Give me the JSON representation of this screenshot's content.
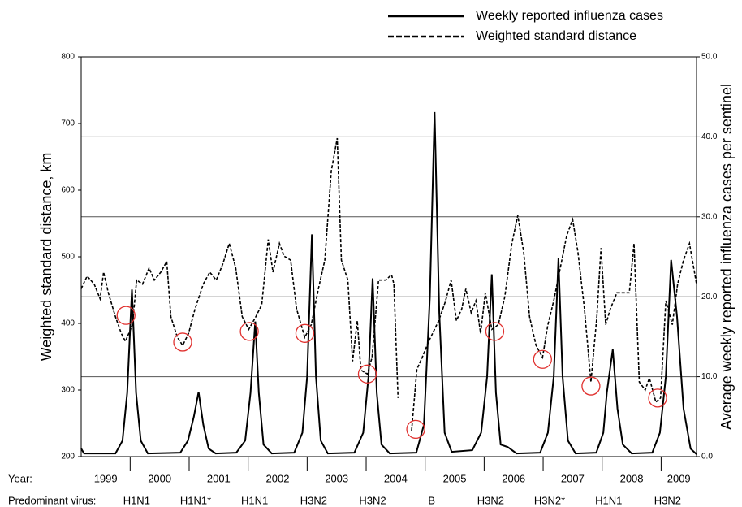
{
  "chart_data": {
    "type": "line",
    "y_label": "Weighted standard distance, km",
    "y2_label": "Average weekly reported influenza cases per sentinel",
    "xlim": [
      1999.17,
      2009.6
    ],
    "xticks": [
      2000,
      2001,
      2002,
      2003,
      2004,
      2005,
      2006,
      2007,
      2008,
      2009
    ],
    "ylim": [
      200,
      800
    ],
    "yticks": [
      200,
      300,
      400,
      500,
      600,
      700,
      800
    ],
    "y2lim": [
      0,
      50
    ],
    "y2ticks": [
      {
        "value": 0,
        "label": "0.0"
      },
      {
        "value": 10,
        "label": "10.0"
      },
      {
        "value": 20,
        "label": "20.0"
      },
      {
        "value": 30,
        "label": "30.0"
      },
      {
        "value": 40,
        "label": "40.0"
      },
      {
        "value": 50,
        "label": "50.0"
      }
    ],
    "grid": true,
    "series": [
      {
        "name": "Weekly reported influenza cases",
        "color": "#000000",
        "dash": "solid",
        "axis": "y2",
        "x": [
          1999.17,
          1999.22,
          1999.75,
          1999.87,
          1999.95,
          2000.03,
          2000.1,
          2000.18,
          2000.3,
          2000.85,
          2000.98,
          2001.08,
          2001.16,
          2001.24,
          2001.33,
          2001.45,
          2001.8,
          2001.95,
          2002.04,
          2002.12,
          2002.18,
          2002.26,
          2002.4,
          2002.78,
          2002.92,
          2003.0,
          2003.08,
          2003.15,
          2003.23,
          2003.35,
          2003.8,
          2003.95,
          2004.04,
          2004.11,
          2004.18,
          2004.26,
          2004.4,
          2004.85,
          2004.98,
          2005.08,
          2005.16,
          2005.24,
          2005.33,
          2005.45,
          2005.8,
          2005.95,
          2006.05,
          2006.13,
          2006.2,
          2006.28,
          2006.4,
          2006.55,
          2006.95,
          2007.08,
          2007.18,
          2007.26,
          2007.33,
          2007.42,
          2007.55,
          2007.9,
          2008.02,
          2008.08,
          2008.18,
          2008.26,
          2008.35,
          2008.5,
          2008.85,
          2008.98,
          2009.08,
          2009.17,
          2009.27,
          2009.38,
          2009.5,
          2009.6
        ],
        "values": [
          1.0,
          0.4,
          0.4,
          2,
          8,
          20.9,
          8,
          2,
          0.4,
          0.5,
          2,
          5,
          8.1,
          4,
          1,
          0.4,
          0.5,
          2,
          8,
          16.9,
          8,
          1.5,
          0.4,
          0.5,
          3,
          10,
          27.8,
          10,
          2,
          0.4,
          0.5,
          3,
          10,
          22.3,
          8,
          1.5,
          0.4,
          0.5,
          4,
          20,
          43.1,
          18,
          3,
          0.6,
          0.8,
          3,
          10,
          22.8,
          8,
          1.5,
          1.2,
          0.4,
          0.5,
          3,
          10,
          24.8,
          10,
          2,
          0.4,
          0.5,
          3,
          8,
          13.4,
          6,
          1.5,
          0.4,
          0.5,
          3,
          10,
          24.6,
          17.5,
          6,
          1,
          0.3
        ]
      },
      {
        "name": "Weighted standard distance",
        "color": "#000000",
        "dash": "dashed",
        "x": [
          1999.17,
          1999.27,
          1999.39,
          1999.49,
          1999.55,
          1999.63,
          1999.75,
          1999.85,
          1999.92,
          2000.04,
          2000.11,
          2000.21,
          2000.32,
          2000.41,
          2000.52,
          2000.62,
          2000.69,
          2000.8,
          2000.89,
          2000.99,
          2001.1,
          2001.24,
          2001.35,
          2001.46,
          2001.57,
          2001.68,
          2001.79,
          2001.9,
          2002.01,
          2002.13,
          2002.23,
          2002.34,
          2002.42,
          2002.53,
          2002.61,
          2002.72,
          2002.82,
          2002.96,
          2003.07,
          2003.19,
          2003.3,
          2003.41,
          2003.51,
          2003.58,
          2003.69,
          2003.77,
          2003.85,
          2003.91,
          2004.02,
          2004.1,
          2004.21,
          2004.33,
          2004.43,
          2004.47,
          2004.54,
          2004.65,
          2004.77,
          2004.86,
          2004.95,
          2005.06,
          2005.23,
          2005.34,
          2005.44,
          2005.53,
          2005.62,
          2005.69,
          2005.78,
          2005.86,
          2005.94,
          2006.02,
          2006.13,
          2006.24,
          2006.35,
          2006.47,
          2006.57,
          2006.67,
          2006.77,
          2006.88,
          2006.99,
          2007.08,
          2007.18,
          2007.29,
          2007.4,
          2007.5,
          2007.59,
          2007.7,
          2007.81,
          2007.91,
          2007.98,
          2008.06,
          2008.14,
          2008.25,
          2008.36,
          2008.46,
          2008.54,
          2008.63,
          2008.73,
          2008.8,
          2008.91,
          2008.99,
          2009.08,
          2009.19,
          2009.28,
          2009.38,
          2009.48,
          2009.6
        ],
        "values": [
          452,
          471,
          459,
          437,
          477,
          446,
          410,
          385,
          373,
          398,
          465,
          459,
          483,
          465,
          477,
          493,
          410,
          379,
          367,
          385,
          422,
          459,
          477,
          465,
          489,
          520,
          483,
          410,
          391,
          410,
          428,
          526,
          477,
          520,
          501,
          495,
          422,
          379,
          398,
          452,
          495,
          629,
          678,
          495,
          465,
          343,
          404,
          330,
          324,
          349,
          465,
          465,
          473,
          459,
          288,
          null,
          239,
          331,
          349,
          373,
          404,
          432,
          465,
          404,
          422,
          452,
          416,
          434,
          385,
          446,
          391,
          398,
          440,
          520,
          562,
          507,
          410,
          367,
          349,
          398,
          434,
          483,
          532,
          556,
          507,
          422,
          312,
          410,
          513,
          398,
          422,
          446,
          446,
          446,
          520,
          312,
          300,
          318,
          282,
          288,
          434,
          398,
          459,
          495,
          520,
          459
        ]
      }
    ],
    "highlighted_points": {
      "x": [
        1999.93,
        2000.89,
        2002.02,
        2002.96,
        2004.02,
        2004.84,
        2006.18,
        2006.99,
        2007.81,
        2008.94
      ],
      "y": [
        412,
        372,
        388,
        385,
        324,
        241,
        388,
        346,
        306,
        288
      ]
    },
    "year_row": {
      "label": "Year:",
      "years": [
        "1999",
        "2000",
        "2001",
        "2002",
        "2003",
        "2004",
        "2005",
        "2006",
        "2007",
        "2008",
        "2009"
      ]
    },
    "virus_row": {
      "label": "Predominant virus:",
      "viruses": [
        "H1N1",
        "H1N1*",
        "H1N1",
        "H3N2",
        "H3N2",
        "B",
        "H3N2",
        "H3N2*",
        "H1N1",
        "H3N2"
      ]
    }
  }
}
